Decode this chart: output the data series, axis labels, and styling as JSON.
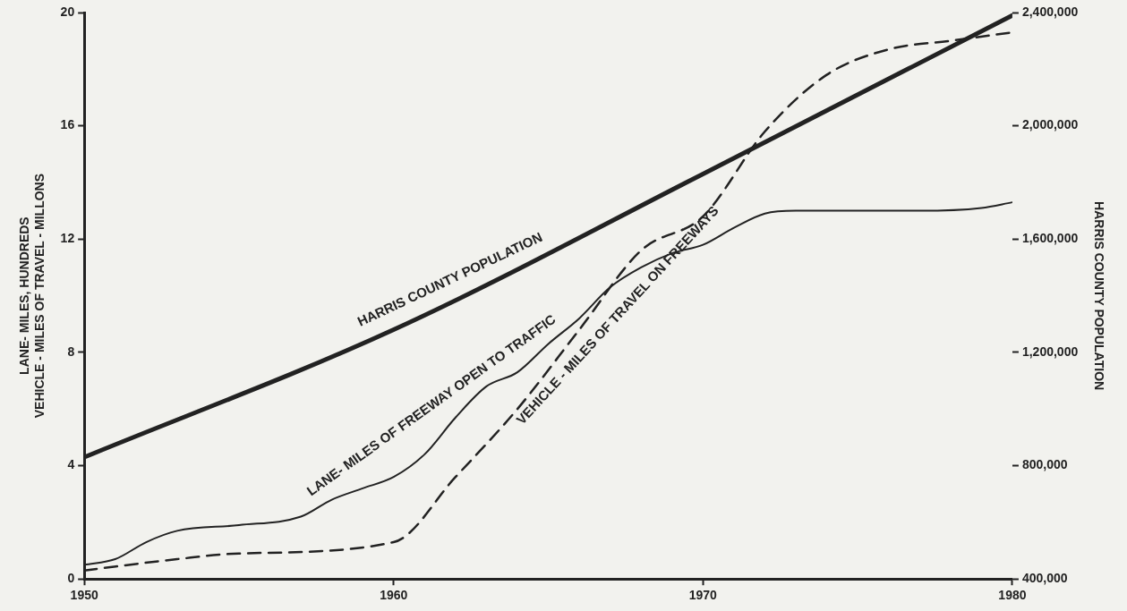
{
  "chart_data": {
    "type": "line",
    "ylabel": "LANE- MILES, HUNDREDS\nVEHICLE - MILES OF TRAVEL - MILLONS",
    "y2label": "HARRIS COUNTY POPULATION",
    "xlim": [
      1950,
      1980
    ],
    "xticks": [
      1950,
      1960,
      1970,
      1980
    ],
    "ylim": [
      0,
      20
    ],
    "yticks": [
      0,
      4,
      8,
      12,
      16,
      20
    ],
    "y2lim": [
      400000,
      2400000
    ],
    "y2ticks": [
      {
        "value": 400000,
        "label": "400,000"
      },
      {
        "value": 800000,
        "label": "800,000"
      },
      {
        "value": 1200000,
        "label": "1,200,000"
      },
      {
        "value": 1600000,
        "label": "1,600,000"
      },
      {
        "value": 2000000,
        "label": "2,000,000"
      },
      {
        "value": 2400000,
        "label": "2,400,000"
      }
    ],
    "grid": false,
    "legend": false,
    "marker": "none",
    "series": [
      {
        "name": "HARRIS COUNTY POPULATION",
        "color": "#222222",
        "axis": "y2",
        "line_style": "solid",
        "x": [
          1950,
          1960,
          1970,
          1980
        ],
        "values": [
          830000,
          1280000,
          1830000,
          2390000
        ]
      },
      {
        "name": "LANE- MILES OF FREEWAY OPEN TO TRAFFIC",
        "color": "#222222",
        "line_style": "solid",
        "x": [
          1950,
          1951,
          1952,
          1953,
          1955,
          1957,
          1958,
          1959,
          1960,
          1961,
          1962,
          1963,
          1964,
          1965,
          1966,
          1967,
          1968,
          1969,
          1970,
          1971,
          1972,
          1973,
          1977,
          1979,
          1980
        ],
        "values": [
          0.5,
          0.7,
          1.3,
          1.7,
          1.9,
          2.2,
          2.8,
          3.2,
          3.6,
          4.4,
          5.7,
          6.8,
          7.3,
          8.3,
          9.2,
          10.3,
          11.0,
          11.5,
          11.8,
          12.4,
          12.9,
          13.0,
          13.0,
          13.1,
          13.3
        ]
      },
      {
        "name": "VEHICLE - MILES OF TRAVEL ON FREEWAYS",
        "color": "#222222",
        "line_style": "dashed",
        "x": [
          1950,
          1953,
          1955,
          1960,
          1962,
          1964,
          1966,
          1968,
          1970,
          1972,
          1974,
          1976,
          1978,
          1980
        ],
        "values": [
          0.3,
          0.7,
          0.9,
          1.3,
          3.6,
          6.0,
          8.8,
          11.6,
          12.8,
          15.8,
          17.8,
          18.7,
          19.0,
          19.3
        ]
      }
    ]
  }
}
